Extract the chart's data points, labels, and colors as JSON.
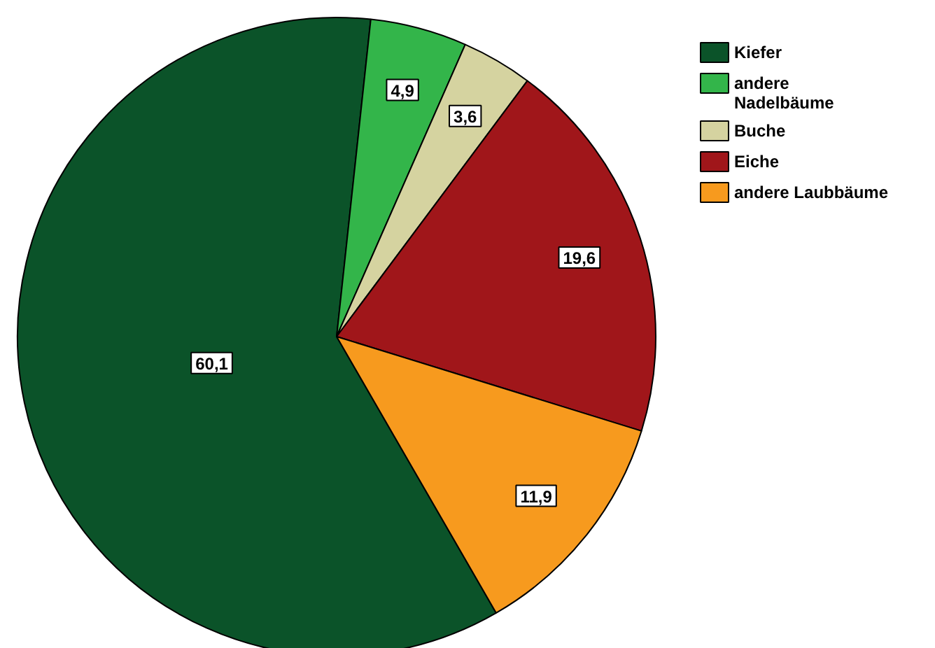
{
  "chart_data": {
    "type": "pie",
    "categories": [
      "Kiefer",
      "andere\nNadelbäume",
      "Buche",
      "Eiche",
      "andere Laubbäume"
    ],
    "values": [
      60.1,
      4.9,
      3.6,
      19.6,
      11.9
    ],
    "value_labels": [
      "60,1",
      "4,9",
      "3,6",
      "19,6",
      "11,9"
    ],
    "colors": [
      "#0b5329",
      "#33b54a",
      "#d5d3a0",
      "#a0161a",
      "#f79a1e"
    ],
    "legend": "top right"
  }
}
